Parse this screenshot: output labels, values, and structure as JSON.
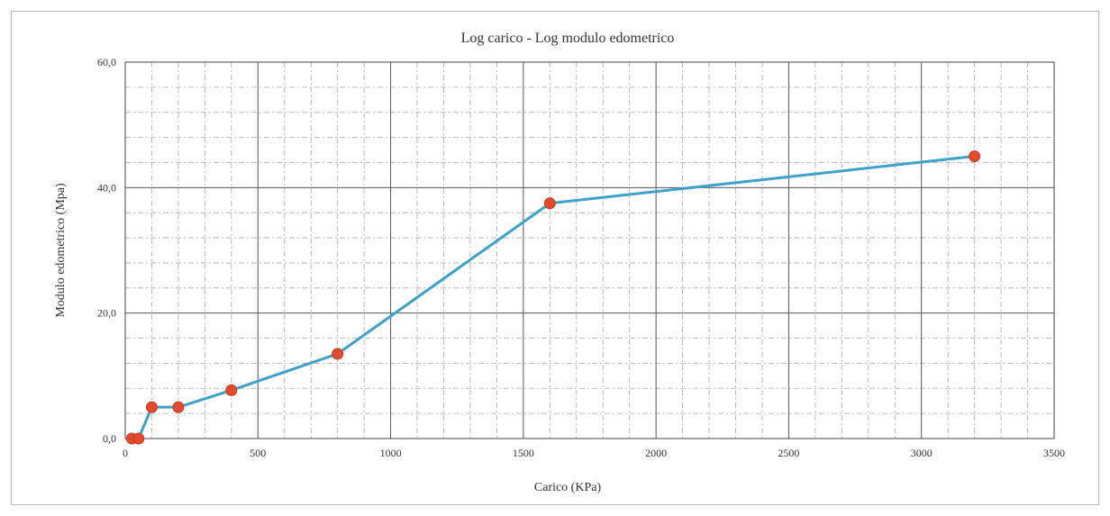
{
  "chart_data": {
    "type": "scatter",
    "title": "Log carico - Log modulo edometrico",
    "xlabel": "Carico (KPa)",
    "ylabel": "Modulo edometrico (Mpa)",
    "xlim": [
      0,
      3500
    ],
    "ylim": [
      0,
      60
    ],
    "x_ticks": [
      0,
      500,
      1000,
      1500,
      2000,
      2500,
      3000,
      3500
    ],
    "x_tick_labels": [
      "0",
      "500",
      "1000",
      "1500",
      "2000",
      "2500",
      "3000",
      "3500"
    ],
    "y_ticks": [
      0,
      20,
      40,
      60
    ],
    "y_tick_labels": [
      "0,0",
      "20,0",
      "40,0",
      "60,0"
    ],
    "grid": true,
    "legend": "none",
    "series": [
      {
        "x": [
          25,
          50,
          100,
          200,
          400,
          800,
          1600,
          3200
        ],
        "y": [
          0.0,
          0.0,
          5.0,
          5.0,
          7.7,
          13.5,
          37.5,
          45.0
        ],
        "line_color": "#3ea1c8",
        "marker_color": "#e24b2e"
      }
    ]
  }
}
